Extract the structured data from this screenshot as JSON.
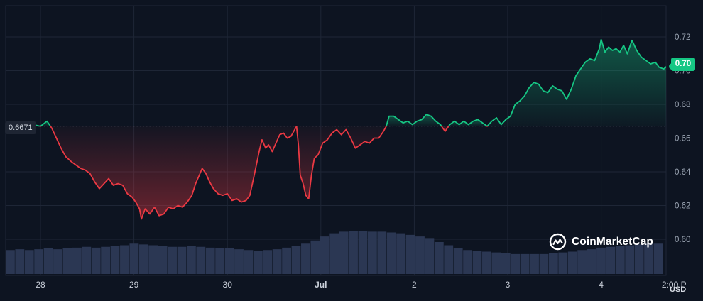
{
  "chart_data": {
    "type": "line",
    "baseline": 0.6671,
    "baseline_label": "0.6671",
    "current_price_label": "0.70",
    "currency": "USD",
    "ylim": [
      0.58,
      0.725
    ],
    "yticks": [
      0.6,
      0.62,
      0.64,
      0.66,
      0.68,
      0.7,
      0.72
    ],
    "ytick_labels": [
      "0.60",
      "0.62",
      "0.64",
      "0.66",
      "0.68",
      "0.70",
      "0.72"
    ],
    "xlim": [
      0,
      7.05
    ],
    "xticks": [
      {
        "x": 0.0,
        "label": "28",
        "bold": false
      },
      {
        "x": 1.0,
        "label": "29",
        "bold": false
      },
      {
        "x": 2.0,
        "label": "30",
        "bold": false
      },
      {
        "x": 3.0,
        "label": "Jul",
        "bold": true
      },
      {
        "x": 4.0,
        "label": "2",
        "bold": false
      },
      {
        "x": 5.0,
        "label": "3",
        "bold": false
      },
      {
        "x": 6.0,
        "label": "4",
        "bold": false
      },
      {
        "x": 6.78,
        "label": "2:00 P",
        "bold": false
      }
    ],
    "colors": {
      "up": "#16c784",
      "down": "#ea3943",
      "volume": "#2b3753",
      "grid": "#1e2636"
    },
    "series": [
      {
        "points": [
          [
            -0.38,
            0.667
          ],
          [
            -0.3,
            0.6675
          ],
          [
            -0.22,
            0.6685
          ],
          [
            -0.15,
            0.666
          ],
          [
            -0.08,
            0.668
          ],
          [
            0.0,
            0.667
          ],
          [
            0.07,
            0.67
          ],
          [
            0.12,
            0.666
          ],
          [
            0.17,
            0.66
          ],
          [
            0.22,
            0.654
          ],
          [
            0.27,
            0.649
          ],
          [
            0.33,
            0.646
          ],
          [
            0.38,
            0.644
          ],
          [
            0.43,
            0.642
          ],
          [
            0.48,
            0.641
          ],
          [
            0.53,
            0.639
          ],
          [
            0.58,
            0.634
          ],
          [
            0.63,
            0.63
          ],
          [
            0.68,
            0.633
          ],
          [
            0.73,
            0.636
          ],
          [
            0.78,
            0.632
          ],
          [
            0.83,
            0.633
          ],
          [
            0.88,
            0.632
          ],
          [
            0.93,
            0.627
          ],
          [
            0.98,
            0.625
          ],
          [
            1.02,
            0.622
          ],
          [
            1.06,
            0.618
          ],
          [
            1.08,
            0.612
          ],
          [
            1.12,
            0.618
          ],
          [
            1.17,
            0.615
          ],
          [
            1.22,
            0.619
          ],
          [
            1.27,
            0.614
          ],
          [
            1.32,
            0.615
          ],
          [
            1.37,
            0.619
          ],
          [
            1.42,
            0.618
          ],
          [
            1.47,
            0.62
          ],
          [
            1.52,
            0.619
          ],
          [
            1.57,
            0.622
          ],
          [
            1.62,
            0.626
          ],
          [
            1.66,
            0.633
          ],
          [
            1.7,
            0.638
          ],
          [
            1.73,
            0.642
          ],
          [
            1.77,
            0.639
          ],
          [
            1.81,
            0.634
          ],
          [
            1.85,
            0.63
          ],
          [
            1.9,
            0.627
          ],
          [
            1.95,
            0.626
          ],
          [
            2.0,
            0.627
          ],
          [
            2.05,
            0.623
          ],
          [
            2.1,
            0.624
          ],
          [
            2.15,
            0.622
          ],
          [
            2.2,
            0.623
          ],
          [
            2.24,
            0.626
          ],
          [
            2.28,
            0.636
          ],
          [
            2.31,
            0.644
          ],
          [
            2.34,
            0.652
          ],
          [
            2.37,
            0.659
          ],
          [
            2.41,
            0.654
          ],
          [
            2.44,
            0.656
          ],
          [
            2.48,
            0.652
          ],
          [
            2.52,
            0.657
          ],
          [
            2.56,
            0.662
          ],
          [
            2.6,
            0.663
          ],
          [
            2.64,
            0.66
          ],
          [
            2.68,
            0.661
          ],
          [
            2.72,
            0.665
          ],
          [
            2.74,
            0.667
          ],
          [
            2.76,
            0.656
          ],
          [
            2.78,
            0.638
          ],
          [
            2.81,
            0.633
          ],
          [
            2.84,
            0.626
          ],
          [
            2.87,
            0.624
          ],
          [
            2.9,
            0.638
          ],
          [
            2.93,
            0.648
          ],
          [
            2.97,
            0.65
          ],
          [
            3.02,
            0.657
          ],
          [
            3.07,
            0.659
          ],
          [
            3.12,
            0.663
          ],
          [
            3.17,
            0.665
          ],
          [
            3.22,
            0.662
          ],
          [
            3.27,
            0.665
          ],
          [
            3.32,
            0.66
          ],
          [
            3.37,
            0.654
          ],
          [
            3.42,
            0.656
          ],
          [
            3.47,
            0.658
          ],
          [
            3.52,
            0.657
          ],
          [
            3.57,
            0.66
          ],
          [
            3.62,
            0.66
          ],
          [
            3.67,
            0.664
          ],
          [
            3.7,
            0.667
          ],
          [
            3.73,
            0.673
          ],
          [
            3.78,
            0.673
          ],
          [
            3.83,
            0.671
          ],
          [
            3.88,
            0.669
          ],
          [
            3.93,
            0.67
          ],
          [
            3.98,
            0.668
          ],
          [
            4.03,
            0.67
          ],
          [
            4.08,
            0.671
          ],
          [
            4.13,
            0.674
          ],
          [
            4.18,
            0.673
          ],
          [
            4.23,
            0.67
          ],
          [
            4.28,
            0.668
          ],
          [
            4.33,
            0.664
          ],
          [
            4.38,
            0.668
          ],
          [
            4.43,
            0.67
          ],
          [
            4.48,
            0.668
          ],
          [
            4.53,
            0.67
          ],
          [
            4.58,
            0.668
          ],
          [
            4.63,
            0.67
          ],
          [
            4.68,
            0.671
          ],
          [
            4.73,
            0.669
          ],
          [
            4.78,
            0.667
          ],
          [
            4.83,
            0.67
          ],
          [
            4.88,
            0.672
          ],
          [
            4.93,
            0.668
          ],
          [
            4.98,
            0.671
          ],
          [
            5.03,
            0.673
          ],
          [
            5.08,
            0.68
          ],
          [
            5.13,
            0.682
          ],
          [
            5.18,
            0.685
          ],
          [
            5.23,
            0.69
          ],
          [
            5.28,
            0.693
          ],
          [
            5.33,
            0.692
          ],
          [
            5.38,
            0.688
          ],
          [
            5.43,
            0.687
          ],
          [
            5.48,
            0.691
          ],
          [
            5.53,
            0.689
          ],
          [
            5.58,
            0.688
          ],
          [
            5.63,
            0.683
          ],
          [
            5.68,
            0.689
          ],
          [
            5.73,
            0.697
          ],
          [
            5.78,
            0.701
          ],
          [
            5.83,
            0.705
          ],
          [
            5.88,
            0.707
          ],
          [
            5.93,
            0.706
          ],
          [
            5.98,
            0.713
          ],
          [
            6.0,
            0.7185
          ],
          [
            6.04,
            0.711
          ],
          [
            6.08,
            0.714
          ],
          [
            6.12,
            0.712
          ],
          [
            6.16,
            0.713
          ],
          [
            6.2,
            0.711
          ],
          [
            6.24,
            0.715
          ],
          [
            6.28,
            0.71
          ],
          [
            6.33,
            0.718
          ],
          [
            6.38,
            0.712
          ],
          [
            6.43,
            0.708
          ],
          [
            6.48,
            0.706
          ],
          [
            6.53,
            0.704
          ],
          [
            6.58,
            0.705
          ],
          [
            6.62,
            0.702
          ],
          [
            6.67,
            0.701
          ],
          [
            6.72,
            0.7035
          ],
          [
            6.76,
            0.7025
          ]
        ]
      }
    ],
    "volume": [
      0.3,
      0.31,
      0.3,
      0.31,
      0.32,
      0.31,
      0.32,
      0.33,
      0.34,
      0.33,
      0.34,
      0.35,
      0.36,
      0.38,
      0.37,
      0.36,
      0.35,
      0.34,
      0.34,
      0.35,
      0.34,
      0.33,
      0.32,
      0.32,
      0.31,
      0.3,
      0.29,
      0.3,
      0.31,
      0.33,
      0.35,
      0.38,
      0.42,
      0.47,
      0.51,
      0.53,
      0.54,
      0.54,
      0.53,
      0.53,
      0.52,
      0.51,
      0.49,
      0.47,
      0.45,
      0.4,
      0.36,
      0.32,
      0.3,
      0.29,
      0.28,
      0.27,
      0.26,
      0.25,
      0.25,
      0.25,
      0.25,
      0.26,
      0.27,
      0.28,
      0.3,
      0.31,
      0.33,
      0.34,
      0.35,
      0.36,
      0.37,
      0.38,
      0.38
    ]
  },
  "watermark": {
    "brand": "CoinMarketCap"
  }
}
